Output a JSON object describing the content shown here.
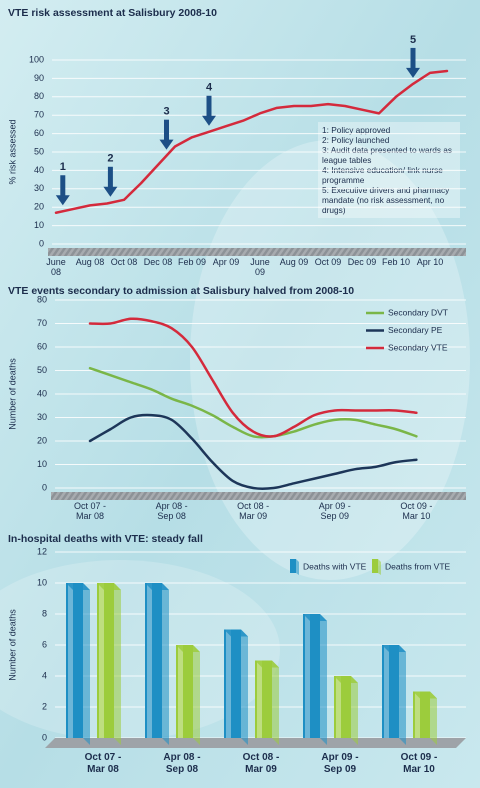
{
  "chart_data": [
    {
      "type": "line",
      "title": "VTE risk assessment at Salisbury 2008-10",
      "y_label": "% risk assessed",
      "categories": [
        "June 08",
        null,
        "Aug 08",
        null,
        "Oct 08",
        null,
        "Dec 08",
        null,
        "Feb 09",
        null,
        "Apr 09",
        null,
        "June 09",
        null,
        "Aug 09",
        null,
        "Oct 09",
        null,
        "Dec 09",
        null,
        "Feb 10",
        null,
        "Apr 10",
        null
      ],
      "values": [
        17,
        19,
        21,
        22,
        24,
        33,
        43,
        53,
        58,
        61,
        64,
        67,
        71,
        74,
        75,
        75,
        76,
        75,
        73,
        71,
        80,
        87,
        93,
        94
      ],
      "color": "#d42a3c",
      "ylim": [
        0,
        100
      ],
      "yticks": [
        0,
        10,
        20,
        30,
        40,
        50,
        60,
        70,
        80,
        90,
        100
      ],
      "grid": true,
      "annotations": [
        "1",
        "2",
        "3",
        "4",
        "5"
      ],
      "notes": [
        "1: Policy approved",
        "2: Policy launched",
        "3: Audit data presented to wards as league tables",
        "4: Intensive education/ link nurse programme",
        "5: Executive drivers and pharmacy mandate (no risk assessment, no drugs)"
      ]
    },
    {
      "type": "line",
      "title": "VTE events secondary to admission at Salisbury halved from 2008-10",
      "y_label": "Number of deaths",
      "categories": [
        "Oct 07 - Mar 08",
        null,
        null,
        null,
        "Apr 08 - Sep 08",
        null,
        null,
        null,
        "Oct 08 - Mar 09",
        null,
        null,
        null,
        "Apr 09 - Sep 09",
        null,
        null,
        null,
        "Oct 09 - Mar 10"
      ],
      "series": [
        {
          "name": "Secondary DVT",
          "color": "#7ab648",
          "values": [
            51,
            48,
            45,
            42,
            38,
            35,
            31,
            26,
            22,
            22,
            24,
            27,
            29,
            29,
            27,
            25,
            22
          ]
        },
        {
          "name": "Secondary PE",
          "color": "#1d3659",
          "values": [
            20,
            25,
            30,
            31,
            29,
            21,
            11,
            3,
            0,
            0,
            2,
            4,
            6,
            8,
            9,
            11,
            12
          ]
        },
        {
          "name": "Secondary VTE",
          "color": "#d42a3c",
          "values": [
            70,
            70,
            72,
            71,
            68,
            60,
            46,
            32,
            24,
            22,
            26,
            31,
            33,
            33,
            33,
            33,
            32
          ]
        }
      ],
      "ylim": [
        0,
        80
      ],
      "yticks": [
        0,
        10,
        20,
        30,
        40,
        50,
        60,
        70,
        80
      ],
      "grid": true,
      "legend": "upper right"
    },
    {
      "type": "bar",
      "title": "In-hospital deaths with VTE: steady fall",
      "y_label": "Number of deaths",
      "categories": [
        "Oct 07 - Mar 08",
        "Apr 08 - Sep 08",
        "Oct 08 - Mar 09",
        "Apr 09 - Sep 09",
        "Oct 09 - Mar 10"
      ],
      "series": [
        {
          "name": "Deaths with VTE",
          "color": "#1e8fc4",
          "values": [
            10,
            10,
            7,
            8,
            6
          ]
        },
        {
          "name": "Deaths from VTE",
          "color": "#9ccc3c",
          "values": [
            10,
            6,
            5,
            4,
            3
          ]
        }
      ],
      "ylim": [
        0,
        12
      ],
      "yticks": [
        0,
        2,
        4,
        6,
        8,
        10,
        12
      ],
      "grid": true,
      "legend": "upper right"
    }
  ]
}
